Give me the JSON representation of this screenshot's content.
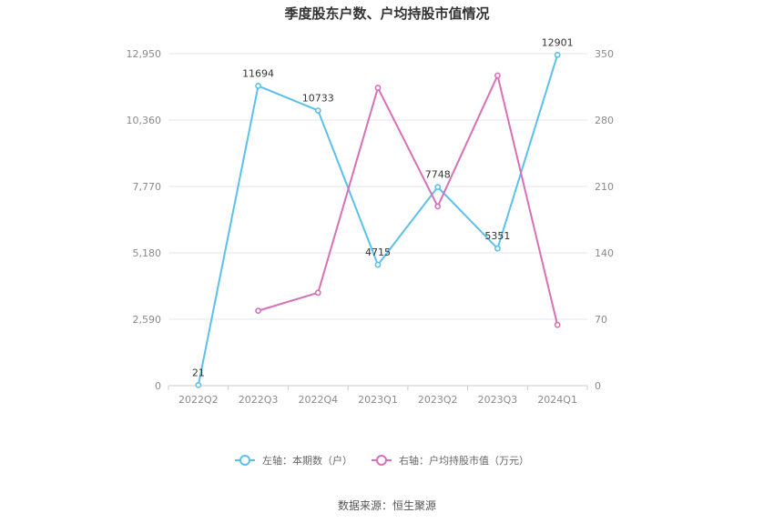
{
  "chart_data": {
    "type": "line",
    "title": "季度股东户数、户均持股市值情况",
    "categories": [
      "2022Q2",
      "2022Q3",
      "2022Q4",
      "2023Q1",
      "2023Q2",
      "2023Q3",
      "2024Q1"
    ],
    "left_axis": {
      "ticks": [
        "0",
        "2,590",
        "5,180",
        "7,770",
        "10,360",
        "12,950"
      ],
      "ylim": [
        0,
        12950
      ]
    },
    "right_axis": {
      "ticks": [
        "0",
        "70",
        "140",
        "210",
        "280",
        "350"
      ],
      "ylim": [
        0,
        350
      ]
    },
    "series": [
      {
        "name": "左轴：本期数（户）",
        "axis": "left",
        "color": "#5bc0eb",
        "values": [
          21,
          11694,
          10733,
          4715,
          7748,
          5351,
          12901
        ],
        "labels": [
          "21",
          "11694",
          "10733",
          "4715",
          "7748",
          "5351",
          "12901"
        ]
      },
      {
        "name": "右轴：户均持股市值（万元）",
        "axis": "right",
        "color": "#d96fb7",
        "values": [
          null,
          79,
          98,
          314,
          189,
          327,
          64
        ]
      }
    ],
    "grid": true,
    "legend": "bottom",
    "source": "数据来源：恒生聚源"
  }
}
